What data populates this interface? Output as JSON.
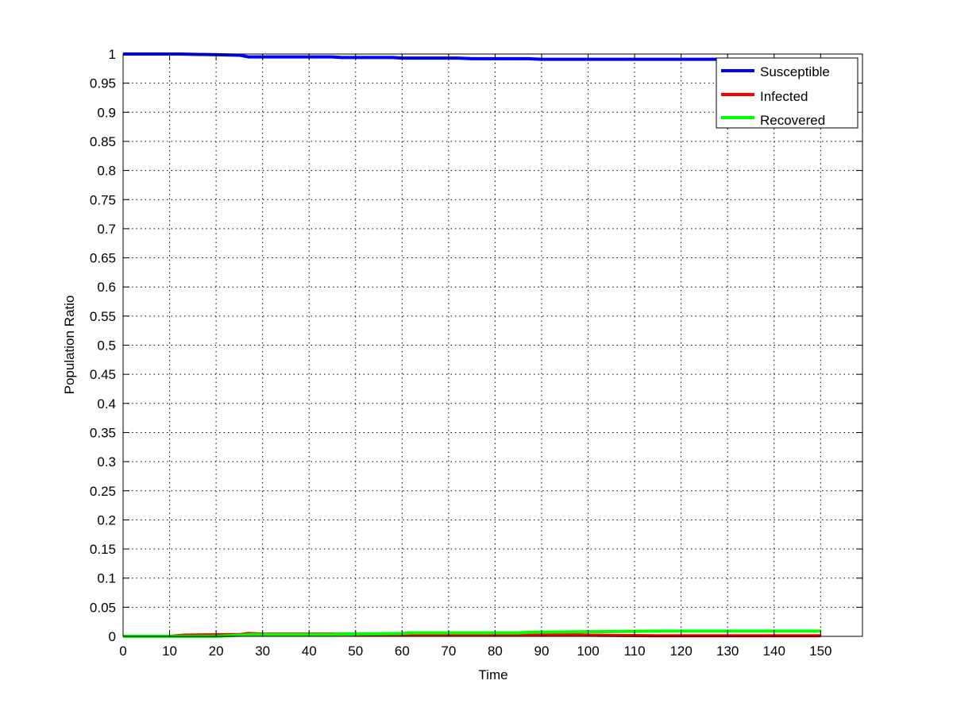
{
  "chart_data": {
    "type": "line",
    "title": "",
    "xlabel": "Time",
    "ylabel": "Population Ratio",
    "xlim": [
      0,
      159
    ],
    "ylim": [
      0,
      1
    ],
    "xticks": [
      0,
      10,
      20,
      30,
      40,
      50,
      60,
      70,
      80,
      90,
      100,
      110,
      120,
      130,
      140,
      150
    ],
    "xtick_labels": [
      "0",
      "10",
      "20",
      "30",
      "40",
      "50",
      "60",
      "70",
      "80",
      "90",
      "100",
      "110",
      "120",
      "130",
      "140",
      "150"
    ],
    "yticks": [
      0,
      0.05,
      0.1,
      0.15,
      0.2,
      0.25,
      0.3,
      0.35,
      0.4,
      0.45,
      0.5,
      0.55,
      0.6,
      0.65,
      0.7,
      0.75,
      0.8,
      0.85,
      0.9,
      0.95,
      1
    ],
    "ytick_labels": [
      "0",
      "0.05",
      "0.1",
      "0.15",
      "0.2",
      "0.25",
      "0.3",
      "0.35",
      "0.4",
      "0.45",
      "0.5",
      "0.55",
      "0.6",
      "0.65",
      "0.7",
      "0.75",
      "0.8",
      "0.85",
      "0.9",
      "0.95",
      "1"
    ],
    "grid": true,
    "legend_position": "top-right",
    "series": [
      {
        "name": "Susceptible",
        "color": "#0000ff",
        "x": [
          0,
          12,
          25,
          27,
          45,
          47,
          58,
          60,
          72,
          75,
          87,
          90,
          150
        ],
        "y": [
          1,
          1,
          0.998,
          0.995,
          0.995,
          0.994,
          0.994,
          0.993,
          0.993,
          0.992,
          0.992,
          0.991,
          0.991
        ]
      },
      {
        "name": "Infected",
        "color": "#ff0000",
        "x": [
          0,
          10,
          13,
          25,
          27,
          30,
          45,
          58,
          75,
          90,
          97,
          100,
          115,
          150
        ],
        "y": [
          0,
          0,
          0.002,
          0.003,
          0.005,
          0.004,
          0.004,
          0.003,
          0.003,
          0.003,
          0.003,
          0.002,
          0.001,
          0.001
        ]
      },
      {
        "name": "Recovered",
        "color": "#00ff00",
        "x": [
          0,
          20,
          25,
          28,
          45,
          47,
          60,
          62,
          85,
          87,
          100,
          115,
          150
        ],
        "y": [
          0,
          0,
          0.002,
          0.003,
          0.003,
          0.004,
          0.005,
          0.006,
          0.006,
          0.007,
          0.008,
          0.009,
          0.009
        ]
      }
    ]
  }
}
